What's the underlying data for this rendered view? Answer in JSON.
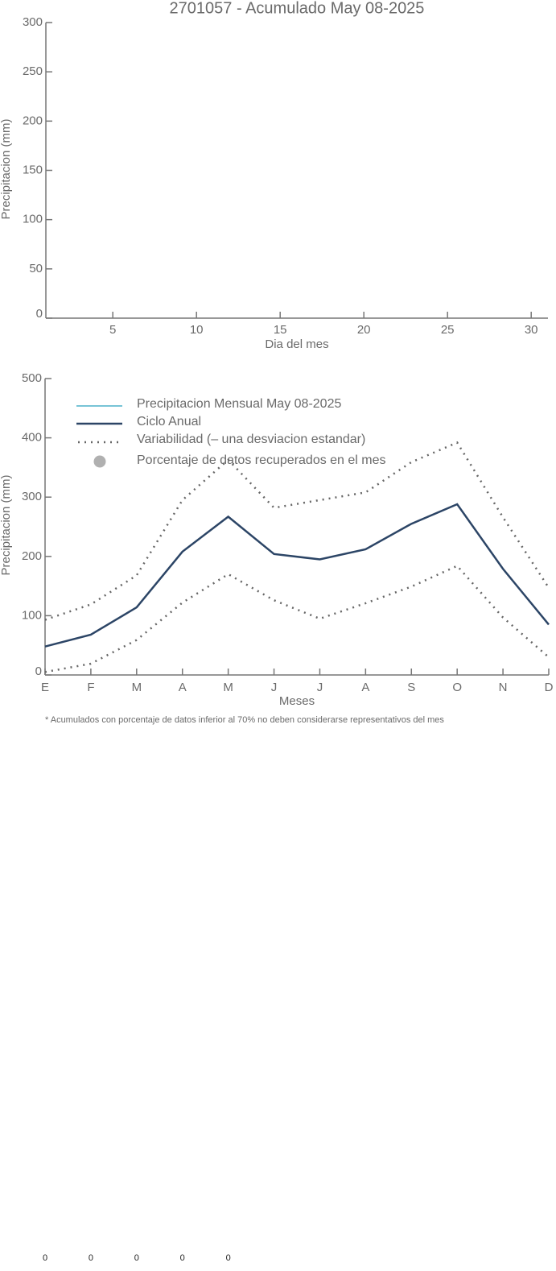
{
  "chart_data": [
    {
      "type": "line",
      "title": "2701057 - Acumulado May 08-2025",
      "y_label": "Precipitacion (mm)",
      "x_label": "Dia del mes",
      "x": [],
      "series": [],
      "xlim": [
        1,
        31
      ],
      "xticks": [
        5,
        10,
        15,
        20,
        25,
        30
      ],
      "ylim": [
        0,
        300
      ],
      "yticks": [
        0,
        50,
        100,
        150,
        200,
        250,
        300
      ]
    },
    {
      "type": "line",
      "y_label": "Precipitacion (mm)",
      "x_label": "Meses",
      "categories": [
        "E",
        "F",
        "M",
        "A",
        "M",
        "J",
        "J",
        "A",
        "S",
        "O",
        "N",
        "D"
      ],
      "series": [
        {
          "name": "Precipitacion Mensual May 08-2025",
          "color": "#4bb0c8",
          "values": [
            null,
            null,
            null,
            null,
            null,
            null,
            null,
            null,
            null,
            null,
            null,
            null
          ]
        },
        {
          "name": "Ciclo Anual",
          "color": "#2c4566",
          "values": [
            48,
            68,
            114,
            208,
            267,
            204,
            195,
            212,
            255,
            288,
            179,
            85
          ]
        }
      ],
      "variability": {
        "name": "Variabilidad (– una desviacion estandar)",
        "color": "#666666",
        "upper": [
          93,
          119,
          168,
          295,
          363,
          282,
          295,
          308,
          359,
          392,
          266,
          147
        ],
        "lower": [
          5,
          19,
          59,
          122,
          170,
          126,
          95,
          121,
          149,
          184,
          97,
          30
        ]
      },
      "percent_legend": {
        "name": "Porcentaje de datos recuperados en el mes",
        "color": "#b0b0b0"
      },
      "ylim": [
        0,
        500
      ],
      "yticks": [
        0,
        100,
        200,
        300,
        400,
        500
      ],
      "footnote": "* Acumulados con porcentaje de datos inferior al 70% no deben considerarse representativos del mes",
      "percent_recovered": [
        0,
        0,
        0,
        0,
        0
      ]
    }
  ]
}
